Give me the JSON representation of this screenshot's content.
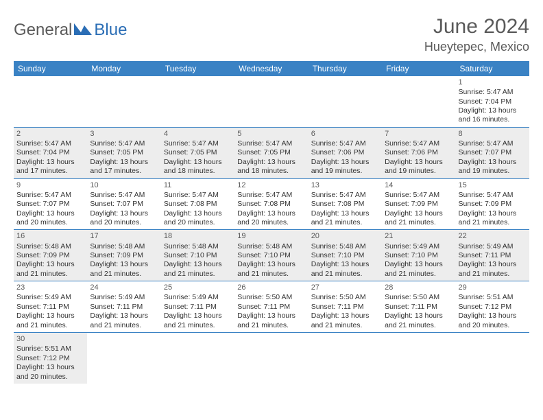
{
  "logo": {
    "text1": "General",
    "text2": "Blue"
  },
  "header": {
    "month": "June 2024",
    "location": "Hueytepec, Mexico"
  },
  "colors": {
    "header_bg": "#3a82c4",
    "header_fg": "#ffffff",
    "gray_bg": "#ededed",
    "text": "#333333",
    "title": "#5a5a5a",
    "border": "#3a82c4"
  },
  "daysOfWeek": [
    "Sunday",
    "Monday",
    "Tuesday",
    "Wednesday",
    "Thursday",
    "Friday",
    "Saturday"
  ],
  "weeks": [
    [
      null,
      null,
      null,
      null,
      null,
      null,
      {
        "n": "1",
        "sunrise": "5:47 AM",
        "sunset": "7:04 PM",
        "daylight": "13 hours and 16 minutes."
      }
    ],
    [
      {
        "n": "2",
        "sunrise": "5:47 AM",
        "sunset": "7:04 PM",
        "daylight": "13 hours and 17 minutes."
      },
      {
        "n": "3",
        "sunrise": "5:47 AM",
        "sunset": "7:05 PM",
        "daylight": "13 hours and 17 minutes."
      },
      {
        "n": "4",
        "sunrise": "5:47 AM",
        "sunset": "7:05 PM",
        "daylight": "13 hours and 18 minutes."
      },
      {
        "n": "5",
        "sunrise": "5:47 AM",
        "sunset": "7:05 PM",
        "daylight": "13 hours and 18 minutes."
      },
      {
        "n": "6",
        "sunrise": "5:47 AM",
        "sunset": "7:06 PM",
        "daylight": "13 hours and 19 minutes."
      },
      {
        "n": "7",
        "sunrise": "5:47 AM",
        "sunset": "7:06 PM",
        "daylight": "13 hours and 19 minutes."
      },
      {
        "n": "8",
        "sunrise": "5:47 AM",
        "sunset": "7:07 PM",
        "daylight": "13 hours and 19 minutes."
      }
    ],
    [
      {
        "n": "9",
        "sunrise": "5:47 AM",
        "sunset": "7:07 PM",
        "daylight": "13 hours and 20 minutes."
      },
      {
        "n": "10",
        "sunrise": "5:47 AM",
        "sunset": "7:07 PM",
        "daylight": "13 hours and 20 minutes."
      },
      {
        "n": "11",
        "sunrise": "5:47 AM",
        "sunset": "7:08 PM",
        "daylight": "13 hours and 20 minutes."
      },
      {
        "n": "12",
        "sunrise": "5:47 AM",
        "sunset": "7:08 PM",
        "daylight": "13 hours and 20 minutes."
      },
      {
        "n": "13",
        "sunrise": "5:47 AM",
        "sunset": "7:08 PM",
        "daylight": "13 hours and 21 minutes."
      },
      {
        "n": "14",
        "sunrise": "5:47 AM",
        "sunset": "7:09 PM",
        "daylight": "13 hours and 21 minutes."
      },
      {
        "n": "15",
        "sunrise": "5:47 AM",
        "sunset": "7:09 PM",
        "daylight": "13 hours and 21 minutes."
      }
    ],
    [
      {
        "n": "16",
        "sunrise": "5:48 AM",
        "sunset": "7:09 PM",
        "daylight": "13 hours and 21 minutes."
      },
      {
        "n": "17",
        "sunrise": "5:48 AM",
        "sunset": "7:09 PM",
        "daylight": "13 hours and 21 minutes."
      },
      {
        "n": "18",
        "sunrise": "5:48 AM",
        "sunset": "7:10 PM",
        "daylight": "13 hours and 21 minutes."
      },
      {
        "n": "19",
        "sunrise": "5:48 AM",
        "sunset": "7:10 PM",
        "daylight": "13 hours and 21 minutes."
      },
      {
        "n": "20",
        "sunrise": "5:48 AM",
        "sunset": "7:10 PM",
        "daylight": "13 hours and 21 minutes."
      },
      {
        "n": "21",
        "sunrise": "5:49 AM",
        "sunset": "7:10 PM",
        "daylight": "13 hours and 21 minutes."
      },
      {
        "n": "22",
        "sunrise": "5:49 AM",
        "sunset": "7:11 PM",
        "daylight": "13 hours and 21 minutes."
      }
    ],
    [
      {
        "n": "23",
        "sunrise": "5:49 AM",
        "sunset": "7:11 PM",
        "daylight": "13 hours and 21 minutes."
      },
      {
        "n": "24",
        "sunrise": "5:49 AM",
        "sunset": "7:11 PM",
        "daylight": "13 hours and 21 minutes."
      },
      {
        "n": "25",
        "sunrise": "5:49 AM",
        "sunset": "7:11 PM",
        "daylight": "13 hours and 21 minutes."
      },
      {
        "n": "26",
        "sunrise": "5:50 AM",
        "sunset": "7:11 PM",
        "daylight": "13 hours and 21 minutes."
      },
      {
        "n": "27",
        "sunrise": "5:50 AM",
        "sunset": "7:11 PM",
        "daylight": "13 hours and 21 minutes."
      },
      {
        "n": "28",
        "sunrise": "5:50 AM",
        "sunset": "7:11 PM",
        "daylight": "13 hours and 21 minutes."
      },
      {
        "n": "29",
        "sunrise": "5:51 AM",
        "sunset": "7:12 PM",
        "daylight": "13 hours and 20 minutes."
      }
    ],
    [
      {
        "n": "30",
        "sunrise": "5:51 AM",
        "sunset": "7:12 PM",
        "daylight": "13 hours and 20 minutes."
      },
      null,
      null,
      null,
      null,
      null,
      null
    ]
  ],
  "labels": {
    "sunrise": "Sunrise:",
    "sunset": "Sunset:",
    "daylight": "Daylight:"
  },
  "layout": {
    "font_size_cell": 10.5,
    "font_size_header": 12,
    "font_size_title": 30
  }
}
